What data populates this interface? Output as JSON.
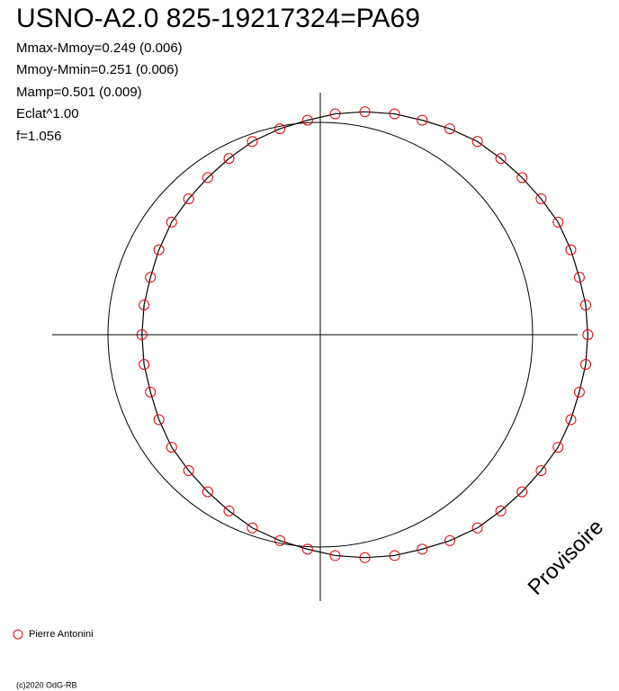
{
  "chart_data": {
    "type": "scatter",
    "title": "USNO-A2.0 825-19217324=PA69",
    "annotations": [
      "Mmax-Mmoy=0.249 (0.006)",
      "Mmoy-Mmin=0.251 (0.006)",
      "Mamp=0.501 (0.009)",
      "Eclat^1.00",
      "f=1.056"
    ],
    "watermark": "Provisoire",
    "footer": "(c)2020 OdG-RB",
    "series": [
      {
        "name": "Pierre Antonini",
        "color": "#e00000",
        "x": [
          1.26,
          1.25,
          1.22,
          1.18,
          1.12,
          1.04,
          0.95,
          0.85,
          0.74,
          0.61,
          0.48,
          0.35,
          0.21,
          0.07,
          -0.06,
          -0.19,
          -0.32,
          -0.43,
          -0.53,
          -0.62,
          -0.7,
          -0.76,
          -0.8,
          -0.83,
          -0.84,
          -0.83,
          -0.8,
          -0.76,
          -0.7,
          -0.62,
          -0.53,
          -0.43,
          -0.32,
          -0.19,
          -0.06,
          0.07,
          0.21,
          0.35,
          0.48,
          0.61,
          0.74,
          0.85,
          0.95,
          1.04,
          1.12,
          1.18,
          1.22,
          1.25
        ],
        "y": [
          0,
          0.14,
          0.27,
          0.4,
          0.53,
          0.64,
          0.74,
          0.83,
          0.91,
          0.97,
          1.01,
          1.04,
          1.05,
          1.04,
          1.01,
          0.97,
          0.91,
          0.83,
          0.74,
          0.64,
          0.53,
          0.4,
          0.27,
          0.14,
          0,
          -0.14,
          -0.27,
          -0.4,
          -0.53,
          -0.64,
          -0.74,
          -0.83,
          -0.91,
          -0.97,
          -1.01,
          -1.04,
          -1.05,
          -1.04,
          -1.01,
          -0.97,
          -0.91,
          -0.83,
          -0.74,
          -0.64,
          -0.53,
          -0.4,
          -0.27,
          -0.14
        ]
      }
    ]
  }
}
